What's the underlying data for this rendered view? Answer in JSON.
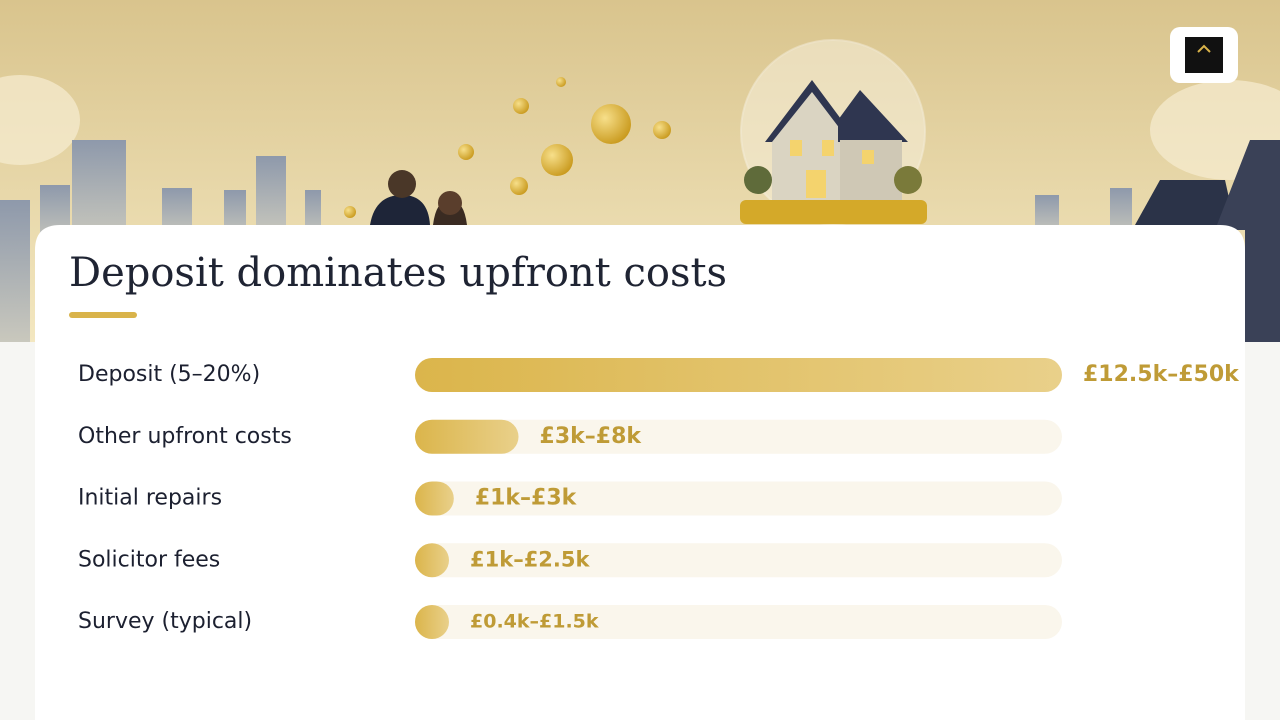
{
  "chart_data": {
    "type": "bar",
    "orientation": "horizontal",
    "title": "Deposit dominates upfront costs",
    "categories": [
      "Deposit (5–20%)",
      "Other upfront costs",
      "Initial repairs",
      "Solicitor fees",
      "Survey (typical)"
    ],
    "values": [
      50,
      8,
      3,
      2.5,
      1.5
    ],
    "value_labels": [
      "£12.5k–£50k",
      "£3k–£8k",
      "£1k–£3k",
      "£1k–£2.5k",
      "£0.4k–£1.5k"
    ],
    "color": "#d9b34a"
  }
}
